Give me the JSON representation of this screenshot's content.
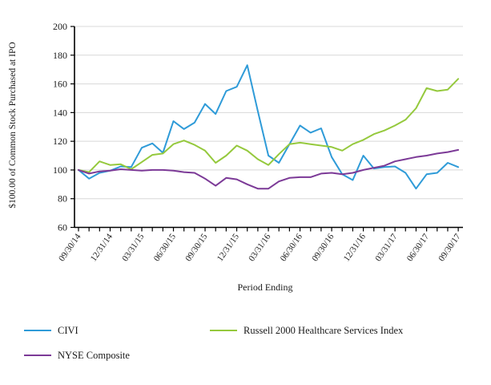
{
  "chart_data": {
    "type": "line",
    "title": "",
    "x_axis": {
      "label": "Period Ending",
      "tick_labels": [
        "09/30/14",
        "12/31/14",
        "03/31/15",
        "06/30/15",
        "09/30/15",
        "12/31/15",
        "03/31/16",
        "06/30/16",
        "09/30/16",
        "12/31/16",
        "03/31/17",
        "06/30/17",
        "09/30/17"
      ],
      "x_monthly": [
        "09/30/14",
        "10/31/14",
        "11/30/14",
        "12/31/14",
        "01/31/15",
        "02/28/15",
        "03/31/15",
        "04/30/15",
        "05/31/15",
        "06/30/15",
        "07/31/15",
        "08/31/15",
        "09/30/15",
        "10/31/15",
        "11/30/15",
        "12/31/15",
        "01/31/16",
        "02/29/16",
        "03/31/16",
        "04/30/16",
        "05/31/16",
        "06/30/16",
        "07/31/16",
        "08/31/16",
        "09/30/16",
        "10/31/16",
        "11/30/16",
        "12/31/16",
        "01/31/17",
        "02/28/17",
        "03/31/17",
        "04/30/17",
        "05/31/17",
        "06/30/17",
        "07/31/17",
        "08/31/17",
        "09/30/17"
      ]
    },
    "y_axis": {
      "label": "$100.00 of Common Stock Purchased at IPO",
      "ticks": [
        60,
        80,
        100,
        120,
        140,
        160,
        180,
        200
      ],
      "range": [
        60,
        200
      ]
    },
    "grid": "horizontal",
    "legend_position": "bottom",
    "series": [
      {
        "name": "CIVI",
        "color": "#2f9bd8",
        "values": [
          100,
          94,
          98,
          99.5,
          102.5,
          102,
          115.5,
          118.5,
          112,
          134,
          128.5,
          133,
          146,
          139,
          155,
          158,
          173,
          141,
          110,
          105,
          118,
          131,
          126,
          129,
          109,
          97,
          93,
          110,
          101,
          102,
          102.5,
          98,
          87,
          97,
          98,
          105,
          102
        ]
      },
      {
        "name": "Russell 2000 Healthcare Services Index",
        "color": "#95c93d",
        "values": [
          100,
          98.5,
          106,
          103.5,
          104,
          100.5,
          105.5,
          110.5,
          111.5,
          118,
          120.5,
          117.5,
          113.5,
          105,
          110,
          117,
          113.5,
          107.5,
          103.5,
          111,
          118,
          119,
          118,
          117,
          116,
          113.5,
          118,
          121,
          125,
          127.5,
          131,
          135,
          143,
          157,
          155,
          156,
          163.5
        ]
      },
      {
        "name": "NYSE Composite",
        "color": "#7c3a97",
        "values": [
          100,
          97.5,
          99,
          99.5,
          100.5,
          100,
          99.5,
          100,
          100,
          99.5,
          98.5,
          98,
          94,
          89,
          94.5,
          93.5,
          90,
          87,
          87,
          92,
          94.5,
          95,
          95,
          97.5,
          98,
          97,
          98,
          100,
          101.5,
          103,
          106,
          107.5,
          109,
          110,
          111.5,
          112.5,
          114
        ]
      }
    ],
    "style": {
      "grid_color": "#d8d8d8",
      "axis_color": "#000000",
      "text_color": "#1a1a1a"
    }
  }
}
